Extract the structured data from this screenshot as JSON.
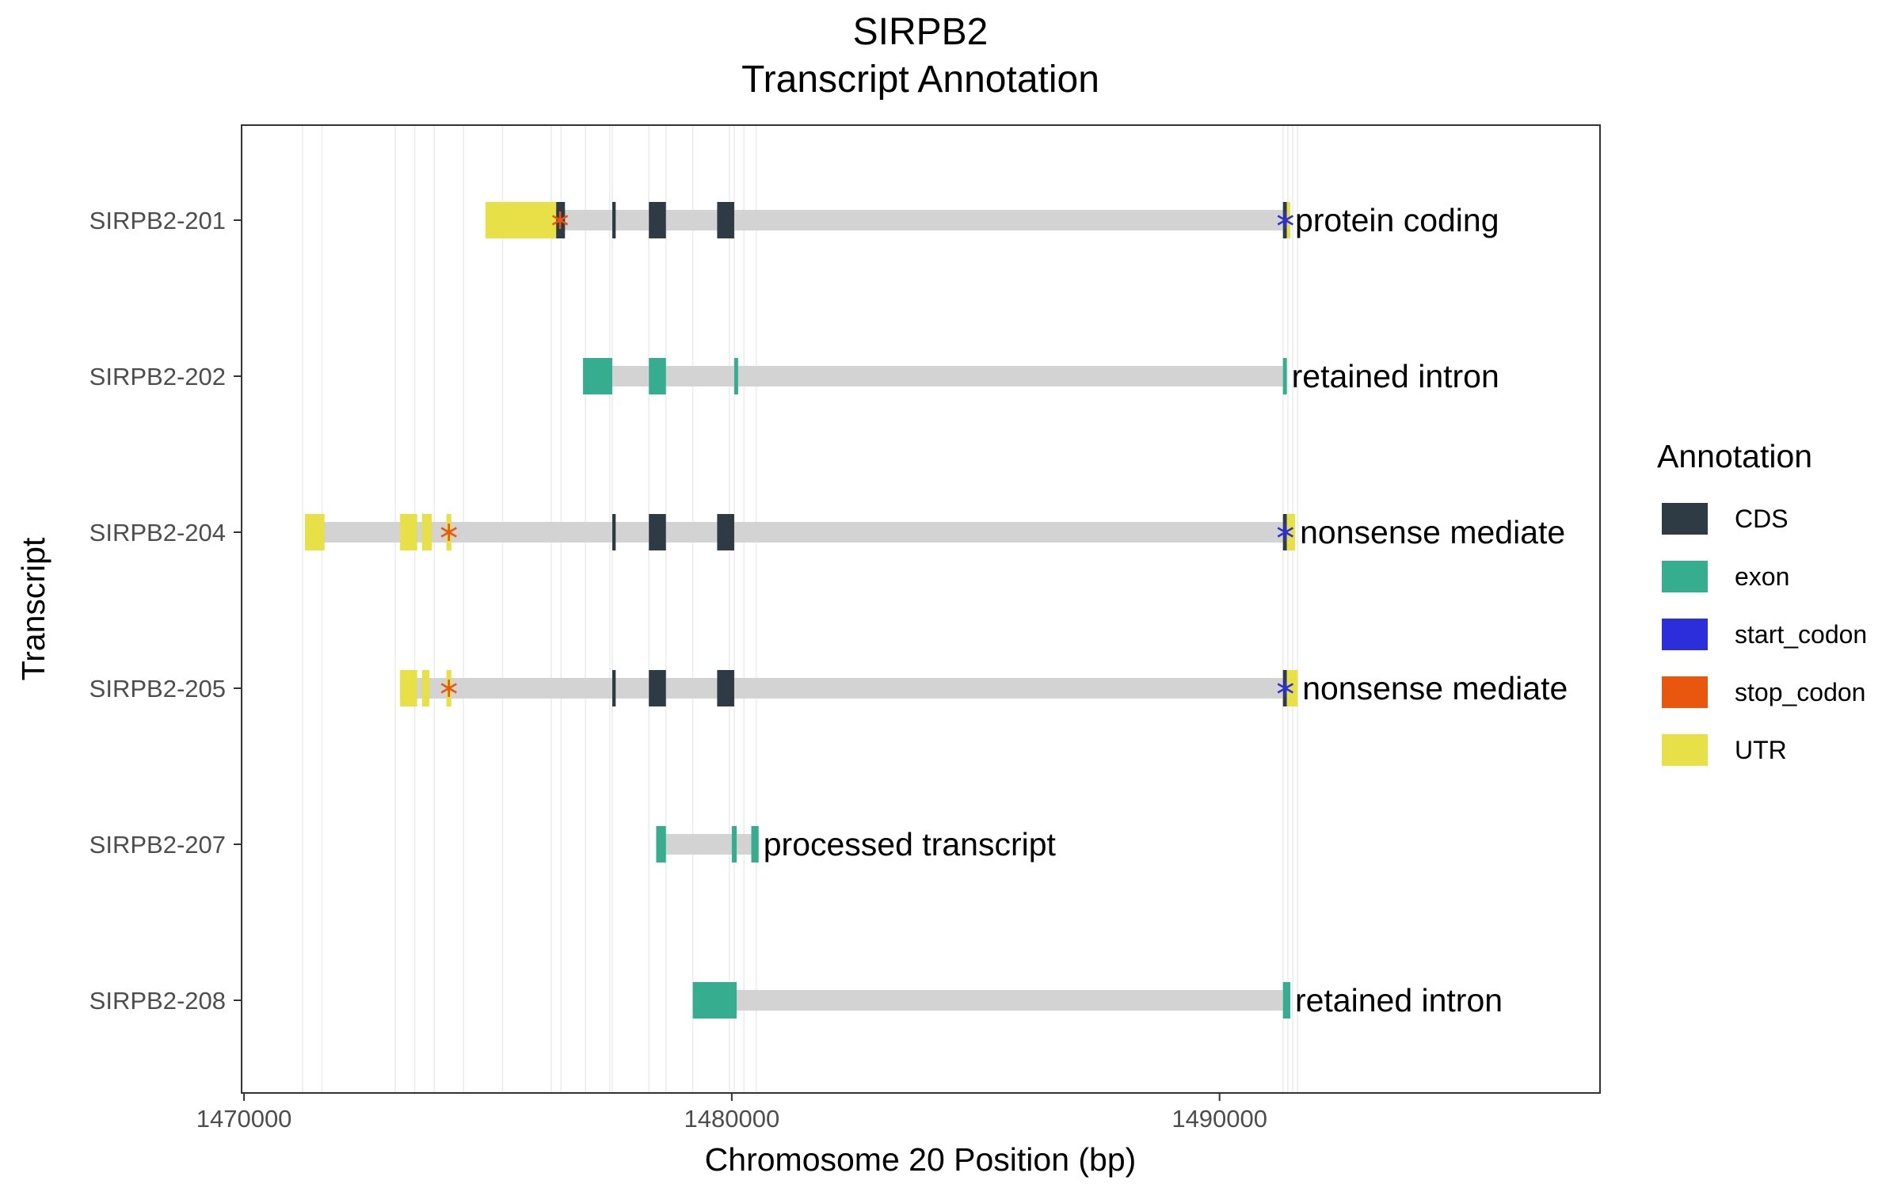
{
  "chart_data": {
    "type": "gene-track",
    "title_line1": "SIRPB2",
    "title_line2": "Transcript Annotation",
    "xlabel": "Chromosome 20 Position (bp)",
    "ylabel": "Transcript",
    "xlim": [
      1469950,
      1497800
    ],
    "x_ticks": [
      1470000,
      1480000,
      1490000
    ],
    "x_tick_labels": [
      "1470000",
      "1480000",
      "1490000"
    ],
    "grid": "vertical-at-feature-boundaries",
    "legend_title": "Annotation",
    "legend": [
      {
        "key": "CDS",
        "label": "CDS",
        "color": "#2E3B45"
      },
      {
        "key": "exon",
        "label": "exon",
        "color": "#35AD8E"
      },
      {
        "key": "start_codon",
        "label": "start_codon",
        "color": "#2C2EDC"
      },
      {
        "key": "stop_codon",
        "label": "stop_codon",
        "color": "#E9570E"
      },
      {
        "key": "UTR",
        "label": "UTR",
        "color": "#E7E046"
      }
    ],
    "intron_color": "#D3D3D3",
    "gridline_positions": [
      1471200,
      1471600,
      1473100,
      1473500,
      1473900,
      1474500,
      1475300,
      1476300,
      1476500,
      1477000,
      1477500,
      1477550,
      1478300,
      1478650,
      1479200,
      1479950,
      1480050,
      1480250,
      1480500,
      1491300,
      1491400,
      1491500,
      1491600
    ],
    "transcripts": [
      {
        "name": "SIRPB2-208",
        "label": "retained intron",
        "start": 1479200,
        "end": 1491450,
        "features": [
          {
            "type": "exon",
            "start": 1479200,
            "end": 1480100
          },
          {
            "type": "exon",
            "start": 1491300,
            "end": 1491450
          }
        ],
        "codons": []
      },
      {
        "name": "SIRPB2-207",
        "label": "processed transcript",
        "start": 1478450,
        "end": 1480550,
        "features": [
          {
            "type": "exon",
            "start": 1478450,
            "end": 1478650
          },
          {
            "type": "exon",
            "start": 1480000,
            "end": 1480100
          },
          {
            "type": "exon",
            "start": 1480400,
            "end": 1480550
          }
        ],
        "codons": []
      },
      {
        "name": "SIRPB2-205",
        "label": "nonsense mediate",
        "start": 1473200,
        "end": 1491600,
        "features": [
          {
            "type": "UTR",
            "start": 1473200,
            "end": 1473550
          },
          {
            "type": "UTR",
            "start": 1473650,
            "end": 1473800
          },
          {
            "type": "UTR",
            "start": 1474150,
            "end": 1474250
          },
          {
            "type": "CDS",
            "start": 1477550,
            "end": 1477620
          },
          {
            "type": "CDS",
            "start": 1478300,
            "end": 1478650
          },
          {
            "type": "CDS",
            "start": 1479700,
            "end": 1480050
          },
          {
            "type": "CDS",
            "start": 1491300,
            "end": 1491380
          },
          {
            "type": "UTR",
            "start": 1491380,
            "end": 1491600
          }
        ],
        "codons": [
          {
            "type": "stop_codon",
            "pos": 1474200
          },
          {
            "type": "start_codon",
            "pos": 1491350
          }
        ]
      },
      {
        "name": "SIRPB2-204",
        "label": "nonsense mediate",
        "start": 1471250,
        "end": 1491550,
        "features": [
          {
            "type": "UTR",
            "start": 1471250,
            "end": 1471650
          },
          {
            "type": "UTR",
            "start": 1473200,
            "end": 1473550
          },
          {
            "type": "UTR",
            "start": 1473650,
            "end": 1473850
          },
          {
            "type": "UTR",
            "start": 1474150,
            "end": 1474250
          },
          {
            "type": "CDS",
            "start": 1477550,
            "end": 1477620
          },
          {
            "type": "CDS",
            "start": 1478300,
            "end": 1478650
          },
          {
            "type": "CDS",
            "start": 1479700,
            "end": 1480050
          },
          {
            "type": "CDS",
            "start": 1491300,
            "end": 1491380
          },
          {
            "type": "UTR",
            "start": 1491380,
            "end": 1491550
          }
        ],
        "codons": [
          {
            "type": "stop_codon",
            "pos": 1474200
          },
          {
            "type": "start_codon",
            "pos": 1491350
          }
        ]
      },
      {
        "name": "SIRPB2-202",
        "label": "retained intron",
        "start": 1476950,
        "end": 1491380,
        "features": [
          {
            "type": "exon",
            "start": 1476950,
            "end": 1477550
          },
          {
            "type": "exon",
            "start": 1478300,
            "end": 1478650
          },
          {
            "type": "exon",
            "start": 1480050,
            "end": 1480130
          },
          {
            "type": "exon",
            "start": 1491300,
            "end": 1491380
          }
        ],
        "codons": []
      },
      {
        "name": "SIRPB2-201",
        "label": "protein coding",
        "start": 1474950,
        "end": 1491450,
        "features": [
          {
            "type": "UTR",
            "start": 1474950,
            "end": 1476400
          },
          {
            "type": "CDS",
            "start": 1476400,
            "end": 1476580
          },
          {
            "type": "CDS",
            "start": 1477550,
            "end": 1477620
          },
          {
            "type": "CDS",
            "start": 1478300,
            "end": 1478650
          },
          {
            "type": "CDS",
            "start": 1479700,
            "end": 1480050
          },
          {
            "type": "CDS",
            "start": 1491300,
            "end": 1491380
          },
          {
            "type": "UTR",
            "start": 1491380,
            "end": 1491450
          }
        ],
        "codons": [
          {
            "type": "stop_codon",
            "pos": 1476480
          },
          {
            "type": "start_codon",
            "pos": 1491350
          }
        ]
      }
    ]
  }
}
